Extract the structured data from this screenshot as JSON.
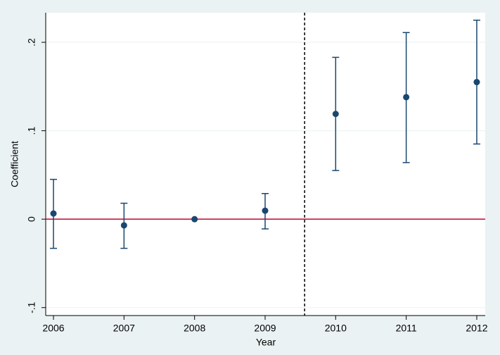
{
  "chart_data": {
    "type": "coefplot",
    "x_label": "Year",
    "y_label": "Coefficient",
    "x": [
      2006,
      2007,
      2008,
      2009,
      2010,
      2011,
      2012
    ],
    "series": [
      {
        "color": "#1a476f",
        "values": [
          0.0064,
          -0.007,
          0,
          0.0096,
          0.119,
          0.138,
          0.155
        ],
        "ci_low": [
          -0.033,
          -0.033,
          null,
          -0.011,
          0.055,
          0.064,
          0.085
        ],
        "ci_high": [
          0.045,
          0.018,
          null,
          0.029,
          0.183,
          0.211,
          0.225
        ]
      }
    ],
    "xlim": [
      2005.89,
      2012.12
    ],
    "xticks": [
      2006,
      2007,
      2008,
      2009,
      2010,
      2011,
      2012
    ],
    "ylim": [
      -0.109,
      0.2335
    ],
    "yticks": [
      {
        "value": -0.1,
        "label": "-.1"
      },
      0,
      {
        "value": 0.1,
        "label": ".1"
      },
      {
        "value": 0.2,
        "label": ".2"
      }
    ],
    "grid": true,
    "hline": 0,
    "hline_color": "#c10534",
    "vline": 2009.56,
    "vline_color": "#000000"
  }
}
